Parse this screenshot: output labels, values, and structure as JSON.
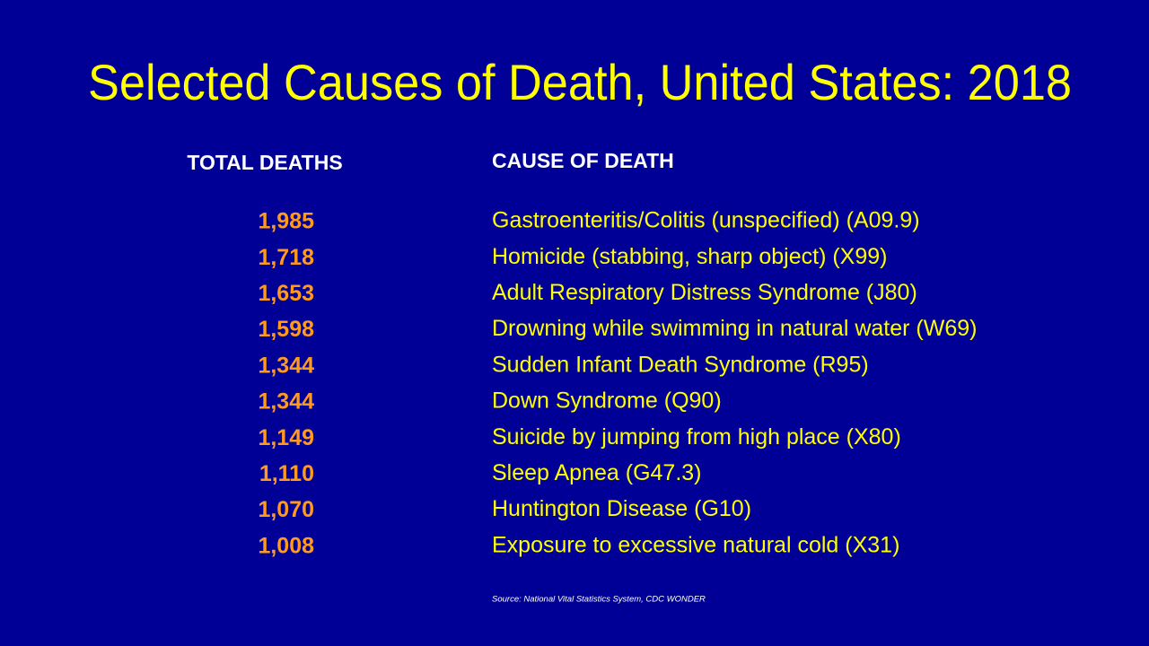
{
  "title": "Selected Causes of Death, United States: 2018",
  "table": {
    "headers": [
      "TOTAL DEATHS",
      "CAUSE OF DEATH"
    ],
    "rows": [
      [
        "1,985",
        "Gastroenteritis/Colitis (unspecified) (A09.9)"
      ],
      [
        "1,718",
        "Homicide (stabbing, sharp object) (X99)"
      ],
      [
        "1,653",
        "Adult Respiratory Distress Syndrome (J80)"
      ],
      [
        "1,598",
        "Drowning while swimming in natural water (W69)"
      ],
      [
        "1,344",
        "Sudden Infant Death Syndrome (R95)"
      ],
      [
        "1,344",
        "Down Syndrome (Q90)"
      ],
      [
        "1,149",
        "Suicide by jumping from high place (X80)"
      ],
      [
        "1,110",
        "Sleep Apnea (G47.3)"
      ],
      [
        "1,070",
        "Huntington Disease (G10)"
      ],
      [
        "1,008",
        "Exposure to excessive natural cold (X31)"
      ]
    ]
  },
  "source": "Source: National Vital Statistics System, CDC WONDER"
}
